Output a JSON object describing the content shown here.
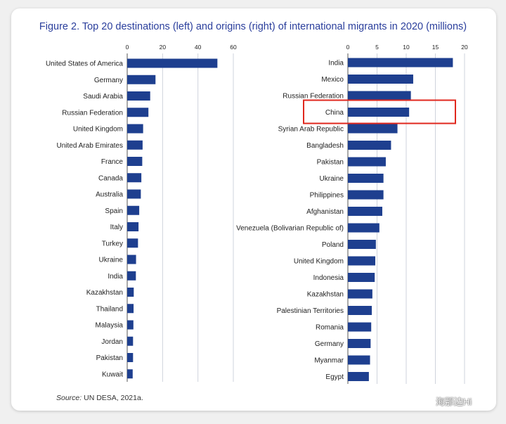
{
  "figure": {
    "title": "Figure 2. Top 20 destinations (left) and origins (right) of international migrants in 2020 (millions)",
    "source_label": "Source:",
    "source_text": "UN DESA, 2021a.",
    "watermark_text": "海那边Hi"
  },
  "colors": {
    "bar": "#1e3f8f",
    "highlight": "#e0271d",
    "title": "#2a3e9c"
  },
  "chart_data": [
    {
      "type": "bar",
      "orientation": "horizontal",
      "xlim": [
        0,
        60
      ],
      "ticks": [
        0,
        20,
        40,
        60
      ],
      "grid": true,
      "categories": [
        "United States of America",
        "Germany",
        "Saudi Arabia",
        "Russian Federation",
        "United Kingdom",
        "United Arab Emirates",
        "France",
        "Canada",
        "Australia",
        "Spain",
        "Italy",
        "Turkey",
        "Ukraine",
        "India",
        "Kazakhstan",
        "Thailand",
        "Malaysia",
        "Jordan",
        "Pakistan",
        "Kuwait"
      ],
      "values": [
        51,
        16,
        13,
        12,
        9,
        8.7,
        8.5,
        8,
        7.7,
        6.8,
        6.4,
        6.1,
        5,
        4.9,
        3.7,
        3.6,
        3.5,
        3.3,
        3.3,
        3.1
      ]
    },
    {
      "type": "bar",
      "orientation": "horizontal",
      "xlim": [
        0,
        20
      ],
      "ticks": [
        0,
        5,
        10,
        15,
        20
      ],
      "grid": true,
      "categories": [
        "India",
        "Mexico",
        "Russian Federation",
        "China",
        "Syrian Arab Republic",
        "Bangladesh",
        "Pakistan",
        "Ukraine",
        "Philippines",
        "Afghanistan",
        "Venezuela (Bolivarian Republic of)",
        "Poland",
        "United Kingdom",
        "Indonesia",
        "Kazakhstan",
        "Palestinian Territories",
        "Romania",
        "Germany",
        "Myanmar",
        "Egypt"
      ],
      "values": [
        18,
        11.2,
        10.8,
        10.5,
        8.5,
        7.4,
        6.5,
        6.1,
        6.1,
        5.9,
        5.4,
        4.8,
        4.7,
        4.6,
        4.2,
        4.1,
        4,
        3.9,
        3.8,
        3.6
      ],
      "highlight": "China"
    }
  ]
}
